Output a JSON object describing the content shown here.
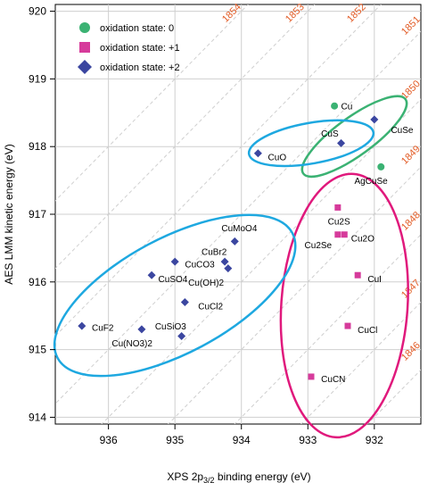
{
  "chart_data": {
    "type": "scatter",
    "title": "",
    "xlabel_main": "XPS 2p",
    "xlabel_sub": "3/2",
    "xlabel_tail": " binding energy (eV)",
    "ylabel": "AES LMM kinetic energy (eV)",
    "xlim": [
      936.8,
      931.3
    ],
    "ylim": [
      913.9,
      920.1
    ],
    "x_reversed": true,
    "x_ticks": [
      936,
      935,
      934,
      933,
      932
    ],
    "y_ticks": [
      914,
      915,
      916,
      917,
      918,
      919,
      920
    ],
    "grid": true,
    "legend_position": "top-left",
    "auger_parameter_lines": [
      "1846",
      "1847",
      "1848",
      "1849",
      "1850",
      "1851",
      "1852",
      "1853",
      "1854"
    ],
    "series": [
      {
        "name": "oxidation state: 0",
        "marker": "circle",
        "color": "#3bb273",
        "points": [
          {
            "label": "Cu",
            "x": 932.6,
            "y": 918.6
          },
          {
            "label": "AgCuSe",
            "x": 931.9,
            "y": 917.7
          }
        ]
      },
      {
        "name": "oxidation state: +1",
        "marker": "square",
        "color": "#d63b9b",
        "points": [
          {
            "label": "Cu2S",
            "x": 932.55,
            "y": 917.1
          },
          {
            "label": "Cu2Se",
            "x": 932.55,
            "y": 916.7
          },
          {
            "label": "Cu2O",
            "x": 932.45,
            "y": 916.7
          },
          {
            "label": "CuI",
            "x": 932.25,
            "y": 916.1
          },
          {
            "label": "CuCl",
            "x": 932.4,
            "y": 915.35
          },
          {
            "label": "CuCN",
            "x": 932.95,
            "y": 914.6
          }
        ]
      },
      {
        "name": "oxidation state: +2",
        "marker": "diamond",
        "color": "#3b46a0",
        "points": [
          {
            "label": "CuSe",
            "x": 932.0,
            "y": 918.4
          },
          {
            "label": "CuS",
            "x": 932.5,
            "y": 918.05
          },
          {
            "label": "CuO",
            "x": 933.75,
            "y": 917.9
          },
          {
            "label": "CuMoO4",
            "x": 934.1,
            "y": 916.6
          },
          {
            "label": "CuBr2",
            "x": 934.25,
            "y": 916.3
          },
          {
            "label": "(OH)2",
            "x": 934.2,
            "y": 916.2
          },
          {
            "label": "CuCO3",
            "x": 935.0,
            "y": 916.3
          },
          {
            "label": "CuSO4",
            "x": 935.35,
            "y": 916.1
          },
          {
            "label": "CuCl2",
            "x": 934.85,
            "y": 915.7
          },
          {
            "label": "CuF2",
            "x": 936.4,
            "y": 915.35
          },
          {
            "label": "Cu(NO3)2",
            "x": 935.5,
            "y": 915.3
          },
          {
            "label": "CuSiO3",
            "x": 934.9,
            "y": 915.2
          }
        ]
      }
    ],
    "labels": [
      {
        "text": "Cu",
        "x": 932.5,
        "y": 918.6
      },
      {
        "text": "CuSe",
        "x": 931.75,
        "y": 918.25
      },
      {
        "text": "CuS",
        "x": 932.8,
        "y": 918.2
      },
      {
        "text": "CuO",
        "x": 933.6,
        "y": 917.85
      },
      {
        "text": "AgCuSe",
        "x": 932.3,
        "y": 917.5
      },
      {
        "text": "CuMoO4",
        "x": 934.3,
        "y": 916.8
      },
      {
        "text": "CuBr2",
        "x": 934.6,
        "y": 916.45
      },
      {
        "text": "CuCO3",
        "x": 934.85,
        "y": 916.27
      },
      {
        "text": "CuSO4",
        "x": 935.25,
        "y": 916.05
      },
      {
        "text": "Cu(OH)2",
        "x": 934.8,
        "y": 916.0
      },
      {
        "text": "CuCl2",
        "x": 934.65,
        "y": 915.65
      },
      {
        "text": "CuF2",
        "x": 936.25,
        "y": 915.33
      },
      {
        "text": "CuSiO3",
        "x": 935.3,
        "y": 915.35
      },
      {
        "text": "Cu(NO3)2",
        "x": 935.95,
        "y": 915.1
      },
      {
        "text": "Cu2S",
        "x": 932.7,
        "y": 916.9
      },
      {
        "text": "Cu2Se",
        "x": 933.05,
        "y": 916.55
      },
      {
        "text": "Cu2O",
        "x": 932.35,
        "y": 916.65
      },
      {
        "text": "CuI",
        "x": 932.1,
        "y": 916.05
      },
      {
        "text": "CuCl",
        "x": 932.25,
        "y": 915.3
      },
      {
        "text": "CuCN",
        "x": 932.8,
        "y": 914.57
      }
    ],
    "ellipses": [
      {
        "name": "state-0",
        "color": "#3bb273",
        "cx": 932.3,
        "cy": 918.15,
        "rx": 0.95,
        "ry": 0.28,
        "angle": -36
      },
      {
        "name": "state-plus1",
        "color": "#e0197c",
        "cx": 932.45,
        "cy": 915.65,
        "rx": 0.95,
        "ry": 1.95,
        "angle": 4
      },
      {
        "name": "state-plus2-cuo",
        "color": "#1ea8e0",
        "cx": 932.95,
        "cy": 918.05,
        "rx": 0.95,
        "ry": 0.3,
        "angle": -10
      },
      {
        "name": "state-plus2-main",
        "color": "#1ea8e0",
        "cx": 935.0,
        "cy": 915.8,
        "rx": 2.0,
        "ry": 0.85,
        "angle": -28
      }
    ]
  }
}
